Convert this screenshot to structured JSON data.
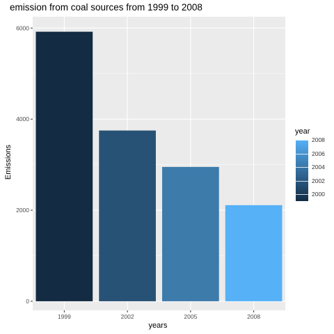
{
  "chart_data": {
    "type": "bar",
    "title": "emission from coal sources from 1999 to 2008",
    "xlabel": "years",
    "ylabel": "Emissions",
    "categories": [
      "1999",
      "2002",
      "2005",
      "2008"
    ],
    "values": [
      5920,
      3750,
      2950,
      2110
    ],
    "bar_colors": [
      "#132B43",
      "#285275",
      "#3D7BAB",
      "#56B1F7"
    ],
    "ylim": [
      -200,
      6250
    ],
    "yticks": [
      0,
      2000,
      4000,
      6000
    ],
    "grid": true,
    "panel_background": "#EBEBEB",
    "gridline_color": "#FFFFFF",
    "legend": {
      "title": "year",
      "position": "right",
      "low_color": "#132B43",
      "high_color": "#56B1F7",
      "range": [
        1999,
        2008
      ],
      "labels": [
        "2008",
        "2006",
        "2004",
        "2002",
        "2000"
      ]
    }
  }
}
